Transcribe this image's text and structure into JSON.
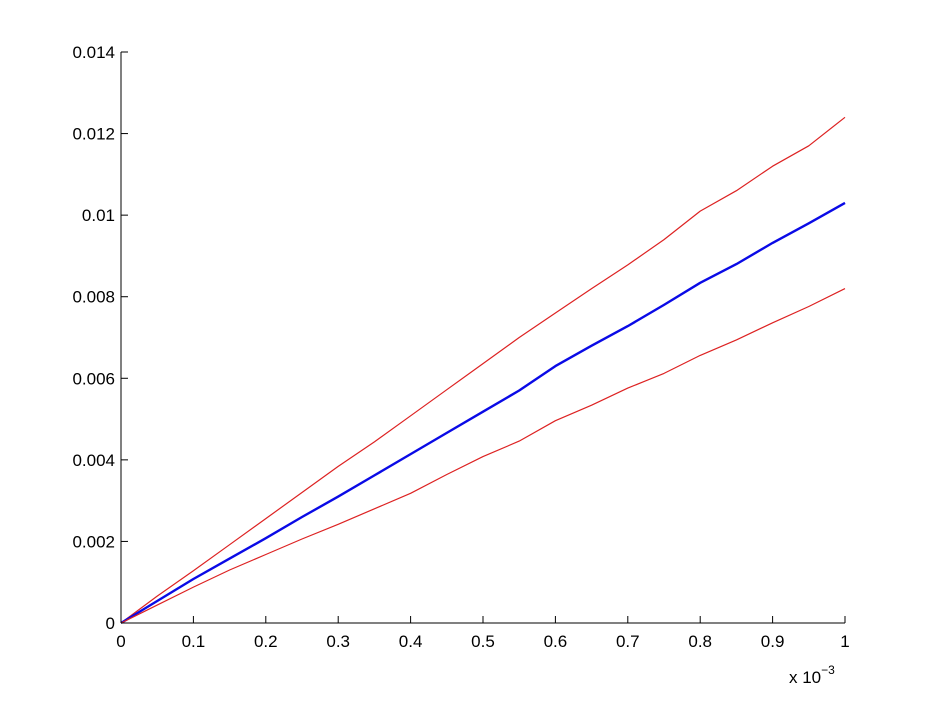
{
  "chart_data": {
    "type": "line",
    "title": "",
    "xlabel": "",
    "ylabel": "",
    "x_multiplier_text": {
      "base": "x 10",
      "exponent": "−3"
    },
    "xlim": [
      0,
      1
    ],
    "ylim": [
      0,
      0.014
    ],
    "x_ticks": [
      0,
      0.1,
      0.2,
      0.3,
      0.4,
      0.5,
      0.6,
      0.7,
      0.8,
      0.9,
      1
    ],
    "x_tick_labels": [
      "0",
      "0.1",
      "0.2",
      "0.3",
      "0.4",
      "0.5",
      "0.6",
      "0.7",
      "0.8",
      "0.9",
      "1"
    ],
    "y_ticks": [
      0,
      0.002,
      0.004,
      0.006,
      0.008,
      0.01,
      0.012,
      0.014
    ],
    "y_tick_labels": [
      "0",
      "0.002",
      "0.004",
      "0.006",
      "0.008",
      "0.01",
      "0.012",
      "0.014"
    ],
    "grid": false,
    "legend": "none",
    "x": [
      0,
      0.05,
      0.1,
      0.15,
      0.2,
      0.25,
      0.3,
      0.35,
      0.4,
      0.45,
      0.5,
      0.55,
      0.6,
      0.65,
      0.7,
      0.75,
      0.8,
      0.85,
      0.9,
      0.95,
      1.0
    ],
    "series": [
      {
        "color": "#dd2222",
        "values": [
          0,
          0.00066,
          0.00128,
          0.00192,
          0.00256,
          0.0032,
          0.00384,
          0.00444,
          0.00508,
          0.00572,
          0.00636,
          0.007,
          0.0076,
          0.0082,
          0.00878,
          0.0094,
          0.0101,
          0.0106,
          0.0112,
          0.0117,
          0.0124
        ]
      },
      {
        "color": "#0a0ae6",
        "values": [
          0,
          0.00054,
          0.00108,
          0.00158,
          0.00208,
          0.0026,
          0.0031,
          0.00362,
          0.00414,
          0.00466,
          0.00518,
          0.0057,
          0.0063,
          0.0068,
          0.00728,
          0.0078,
          0.00834,
          0.0088,
          0.00932,
          0.0098,
          0.0103
        ]
      },
      {
        "color": "#dd2222",
        "values": [
          0,
          0.00044,
          0.00088,
          0.0013,
          0.00168,
          0.00206,
          0.00242,
          0.0028,
          0.00318,
          0.00364,
          0.00408,
          0.00446,
          0.00496,
          0.00534,
          0.00576,
          0.00612,
          0.00656,
          0.00694,
          0.00736,
          0.00776,
          0.0082
        ]
      }
    ]
  }
}
